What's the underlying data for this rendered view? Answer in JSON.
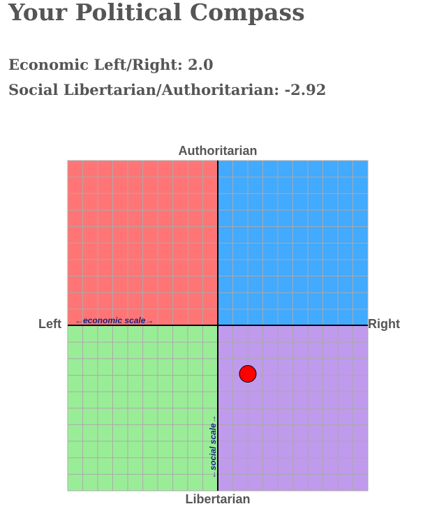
{
  "page": {
    "title": "Your Political Compass",
    "economic": {
      "label": "Economic Left/Right:",
      "value": "2.0"
    },
    "social": {
      "label": "Social Libertarian/Authoritarian:",
      "value": "-2.92"
    }
  },
  "chart_data": {
    "type": "scatter",
    "xlabel": "←economic scale→",
    "ylabel": "←social scale→",
    "xlim": [
      -10,
      10
    ],
    "ylim": [
      -10,
      10
    ],
    "grid": true,
    "axis_labels": {
      "top": "Authoritarian",
      "bottom": "Libertarian",
      "left": "Left",
      "right": "Right"
    },
    "quadrants": {
      "top_left": "#ff7575",
      "top_right": "#42aaff",
      "bottom_left": "#9aed97",
      "bottom_right": "#c09aec"
    },
    "points": [
      {
        "x": 2.0,
        "y": -2.92,
        "color": "#ff0000"
      }
    ]
  }
}
